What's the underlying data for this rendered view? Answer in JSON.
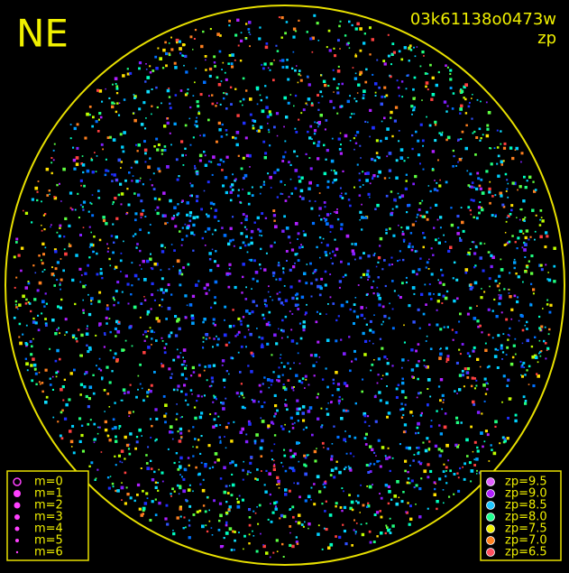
{
  "header": {
    "station": "NE",
    "frame": "03k61138o0473w",
    "mode": "zp"
  },
  "magnitude_legend": {
    "entries": [
      "m=0",
      "m=1",
      "m=2",
      "m=3",
      "m=4",
      "m=5",
      "m=6"
    ]
  },
  "zp_legend": {
    "entries": [
      {
        "label": "zp=9.5",
        "color": "#e060ff"
      },
      {
        "label": "zp=9.0",
        "color": "#b020ff"
      },
      {
        "label": "zp=8.5",
        "color": "#20c8ff"
      },
      {
        "label": "zp=8.0",
        "color": "#20ff90"
      },
      {
        "label": "zp=7.5",
        "color": "#f0f000"
      },
      {
        "label": "zp=7.0",
        "color": "#ff8020"
      },
      {
        "label": "zp=6.5",
        "color": "#ff5060"
      }
    ]
  }
}
